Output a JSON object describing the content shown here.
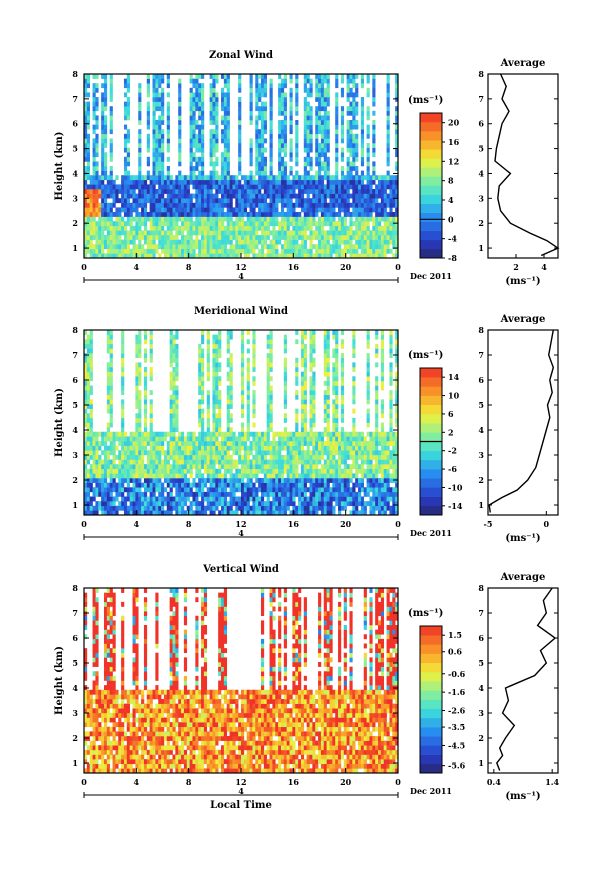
{
  "chart_data": [
    {
      "type": "heatmap",
      "title": "Zonal Wind",
      "xlabel": "",
      "ylabel": "Height (km)",
      "xticks": [
        "0",
        "4",
        "8",
        "12",
        "16",
        "20",
        "0"
      ],
      "yticks": [
        "1",
        "2",
        "3",
        "4",
        "5",
        "6",
        "7",
        "8"
      ],
      "date_label": "4",
      "month_label": "Dec 2011",
      "colorbar": {
        "unit": "(ms⁻¹)",
        "ticks": [
          "20",
          "16",
          "12",
          "8",
          "4",
          "0",
          "-4",
          "-8"
        ],
        "min": -8,
        "max": 22,
        "zero_line": 0
      },
      "average": {
        "title": "Average",
        "xticks": [
          "2",
          "4"
        ],
        "xlabel": "(ms⁻¹)",
        "xlim": [
          0,
          5
        ],
        "heights": [
          0.7,
          1.0,
          1.3,
          1.6,
          2.0,
          2.5,
          3.0,
          3.5,
          4.0,
          4.5,
          5.0,
          5.5,
          6.0,
          6.5,
          7.0,
          7.5,
          8.0
        ],
        "values": [
          3.8,
          5.0,
          4.2,
          3.0,
          1.6,
          0.9,
          0.7,
          0.8,
          1.6,
          0.5,
          0.6,
          0.8,
          1.0,
          1.5,
          1.0,
          1.3,
          0.9
        ]
      }
    },
    {
      "type": "heatmap",
      "title": "Meridional Wind",
      "xlabel": "",
      "ylabel": "Height (km)",
      "xticks": [
        "0",
        "4",
        "8",
        "12",
        "16",
        "20",
        "0"
      ],
      "yticks": [
        "1",
        "2",
        "3",
        "4",
        "5",
        "6",
        "7",
        "8"
      ],
      "date_label": "4",
      "month_label": "Dec 2011",
      "colorbar": {
        "unit": "(ms⁻¹)",
        "ticks": [
          "14",
          "10",
          "6",
          "2",
          "-2",
          "-6",
          "-10",
          "-14"
        ],
        "min": -16,
        "max": 16,
        "zero_line": 0
      },
      "average": {
        "title": "Average",
        "xticks": [
          "-5",
          "0"
        ],
        "xlabel": "(ms⁻¹)",
        "xlim": [
          -5,
          1
        ],
        "heights": [
          0.7,
          1.0,
          1.3,
          1.6,
          2.0,
          2.5,
          3.0,
          3.5,
          4.0,
          4.5,
          5.0,
          5.5,
          6.0,
          6.5,
          7.0,
          7.5,
          8.0
        ],
        "values": [
          -4.8,
          -4.9,
          -3.8,
          -2.5,
          -1.6,
          -0.9,
          -0.6,
          -0.3,
          0.0,
          0.3,
          0.1,
          0.5,
          0.3,
          0.6,
          0.2,
          0.4,
          0.6
        ]
      }
    },
    {
      "type": "heatmap",
      "title": "Vertical Wind",
      "xlabel": "Local Time",
      "ylabel": "Height (km)",
      "xticks": [
        "0",
        "4",
        "8",
        "12",
        "16",
        "20",
        "0"
      ],
      "yticks": [
        "1",
        "2",
        "3",
        "4",
        "5",
        "6",
        "7",
        "8"
      ],
      "date_label": "4",
      "month_label": "Dec 2011",
      "colorbar": {
        "unit": "(ms⁻¹)",
        "ticks": [
          "1.5",
          "0.6",
          "-0.6",
          "-1.6",
          "-2.6",
          "-3.5",
          "-4.5",
          "-5.6"
        ],
        "min": -6.0,
        "max": 2.0,
        "zero_line": null
      },
      "average": {
        "title": "Average",
        "xticks": [
          "0.4",
          "1.4"
        ],
        "xlabel": "(ms⁻¹)",
        "xlim": [
          0.3,
          1.5
        ],
        "heights": [
          0.7,
          1.0,
          1.3,
          1.6,
          2.0,
          2.5,
          3.0,
          3.5,
          4.0,
          4.5,
          5.0,
          5.5,
          6.0,
          6.5,
          7.0,
          7.5,
          8.0
        ],
        "values": [
          0.5,
          0.45,
          0.55,
          0.5,
          0.6,
          0.75,
          0.55,
          0.65,
          0.6,
          1.1,
          1.3,
          1.2,
          1.45,
          1.15,
          1.3,
          1.25,
          1.4
        ]
      }
    }
  ]
}
